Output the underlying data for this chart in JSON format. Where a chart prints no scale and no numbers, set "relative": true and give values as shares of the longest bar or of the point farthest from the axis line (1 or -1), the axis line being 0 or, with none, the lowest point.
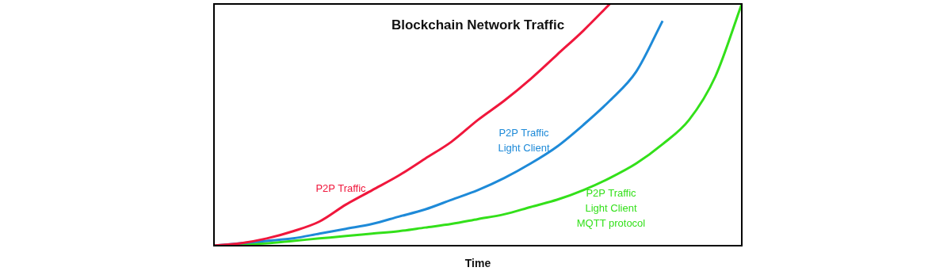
{
  "chart_data": {
    "type": "line",
    "title": "Blockchain Network Traffic",
    "xlabel": "Time",
    "relative": true,
    "categories": [
      null,
      null,
      null,
      null,
      null,
      null,
      null,
      null,
      null,
      null,
      null,
      null,
      null,
      null,
      null,
      null,
      null,
      null,
      null,
      null,
      null
    ],
    "series": [
      {
        "name": "P2P Traffic",
        "color": "#f0173c",
        "values": [
          0,
          0.01,
          0.03,
          0.06,
          0.1,
          0.17,
          0.23,
          0.29,
          0.36,
          0.43,
          0.52,
          0.6,
          0.69,
          0.79,
          0.89,
          1,
          null,
          null,
          null,
          null,
          null
        ]
      },
      {
        "name": "P2P Traffic\nLight Client",
        "color": "#1e8ad8",
        "values": [
          0,
          0.01,
          0.02,
          0.03,
          0.05,
          0.07,
          0.09,
          0.12,
          0.15,
          0.19,
          0.23,
          0.28,
          0.34,
          0.41,
          0.5,
          0.6,
          0.72,
          0.93,
          null,
          null,
          null
        ]
      },
      {
        "name": "P2P Traffic\nLight Client\nMQTT protocol",
        "color": "#33e01a",
        "values": [
          0,
          0.005,
          0.01,
          0.02,
          0.03,
          0.04,
          0.05,
          0.06,
          0.075,
          0.09,
          0.11,
          0.13,
          0.16,
          0.19,
          0.23,
          0.28,
          0.34,
          0.42,
          0.52,
          0.7,
          1
        ]
      }
    ]
  }
}
